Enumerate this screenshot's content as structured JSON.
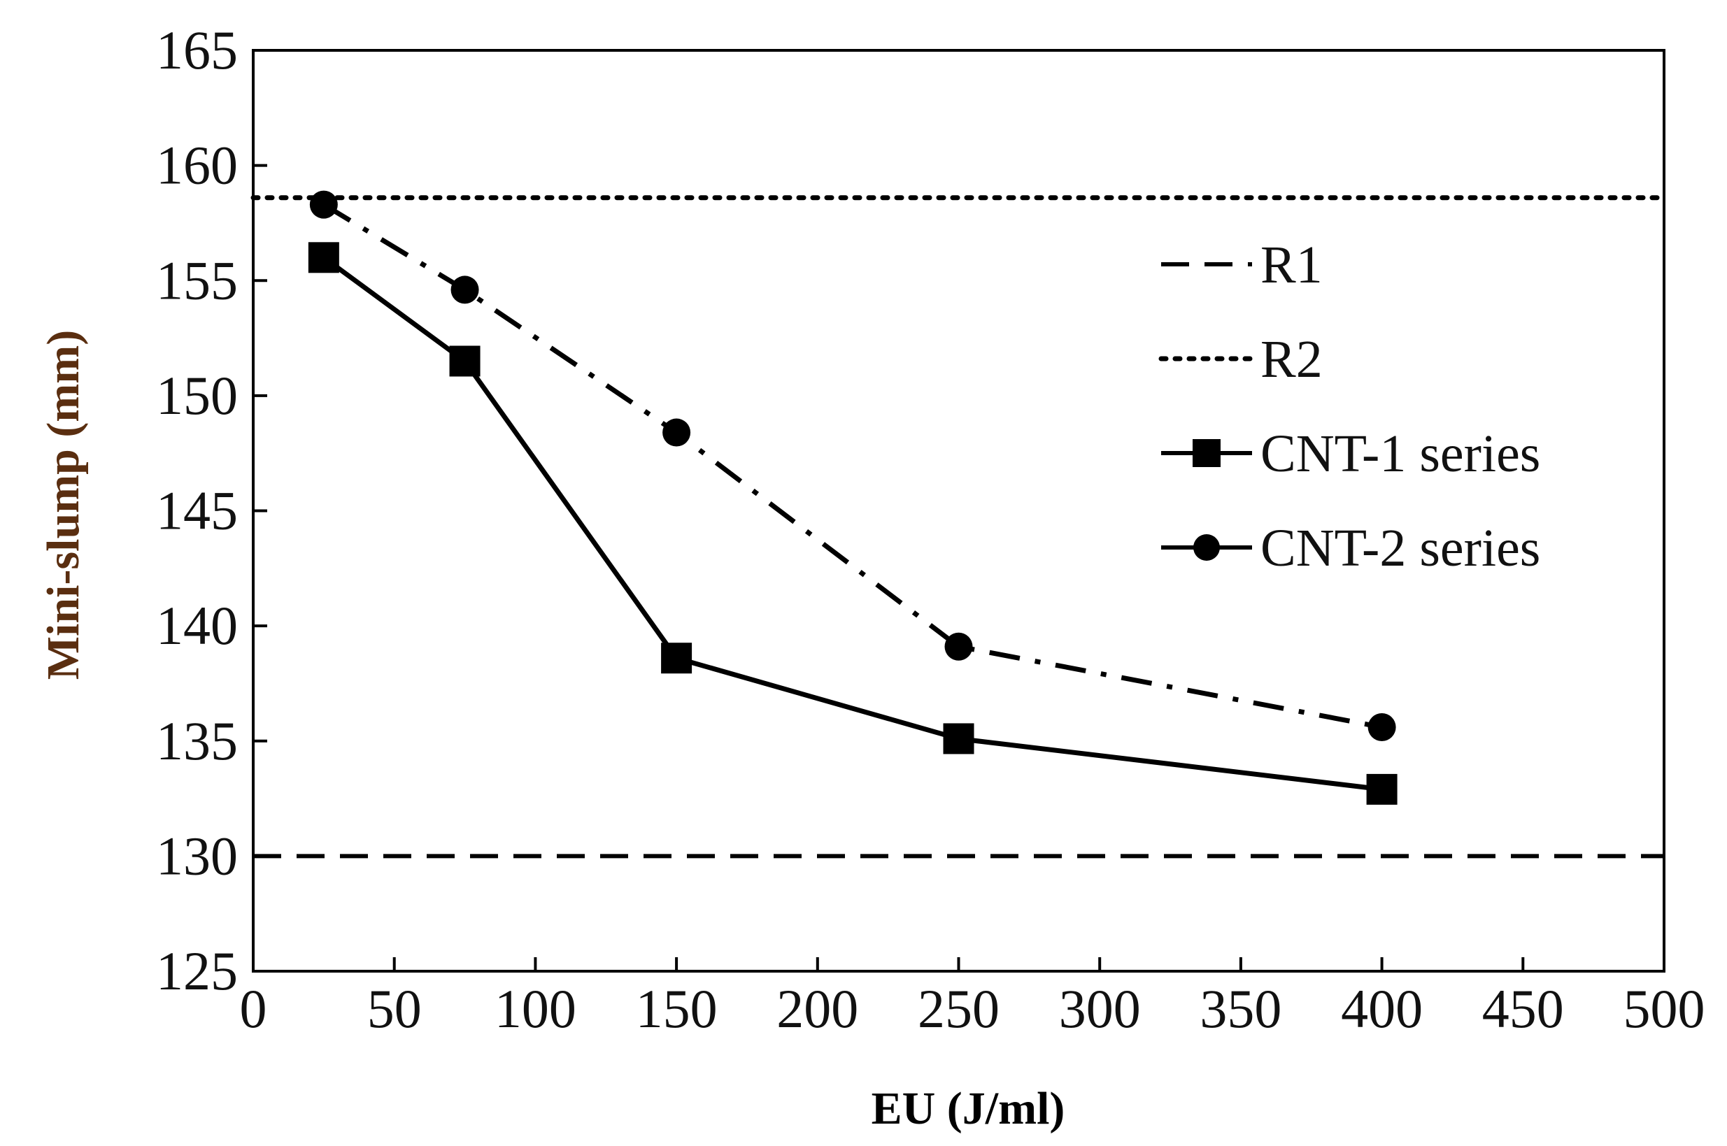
{
  "chart_data": {
    "type": "line",
    "title": "",
    "xlabel": "EU (J/ml)",
    "ylabel": "Mini-slump (mm)",
    "xlim": [
      0,
      500
    ],
    "ylim": [
      125,
      165
    ],
    "xticks": [
      "0",
      "50",
      "100",
      "150",
      "200",
      "250",
      "300",
      "350",
      "400",
      "450",
      "500"
    ],
    "yticks": [
      "125",
      "130",
      "135",
      "140",
      "145",
      "150",
      "155",
      "160",
      "165"
    ],
    "grid": false,
    "legend_position": "top-right",
    "reference_lines": [
      {
        "name": "R1",
        "style": "dashed",
        "y": 130
      },
      {
        "name": "R2",
        "style": "dotted",
        "y": 158.6
      }
    ],
    "series": [
      {
        "name": "CNT-1 series",
        "style": "solid",
        "marker": "square",
        "x": [
          25,
          75,
          150,
          250,
          400
        ],
        "y": [
          156,
          151.5,
          138.6,
          135.1,
          132.9
        ]
      },
      {
        "name": "CNT-2 series",
        "style": "dash-dot",
        "marker": "circle",
        "x": [
          25,
          75,
          150,
          250,
          400
        ],
        "y": [
          158.3,
          154.6,
          148.4,
          139.1,
          135.6
        ]
      }
    ],
    "colors": {
      "ink": "#000000",
      "ylabel_color": "#5a2e10",
      "xlabel_color": "#000000"
    }
  }
}
